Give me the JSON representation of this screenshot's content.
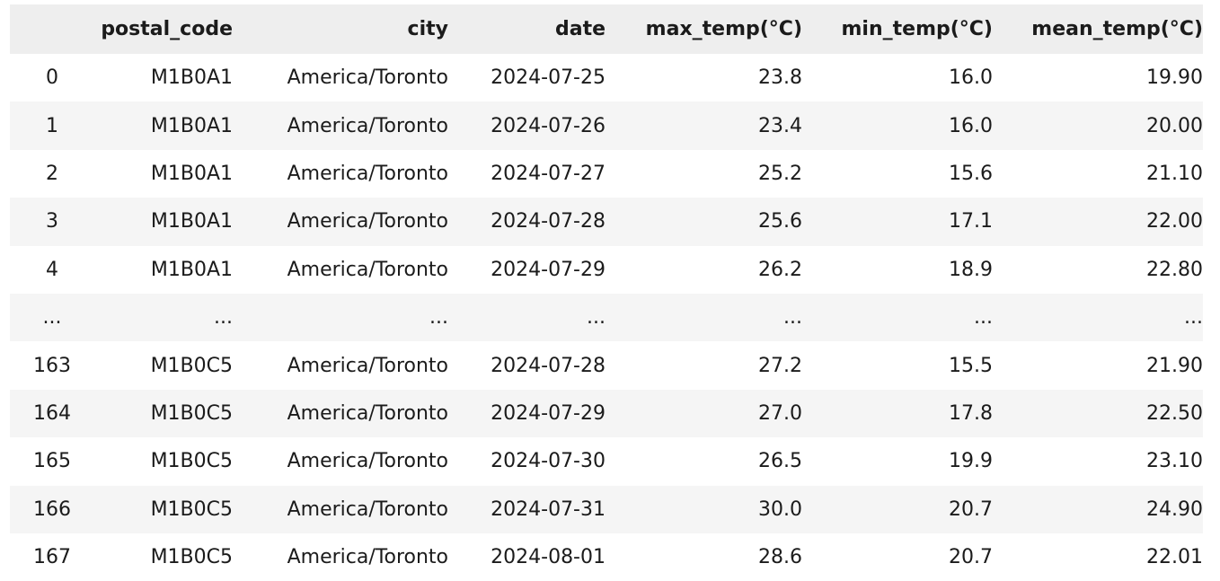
{
  "table": {
    "columns": [
      "",
      "postal_code",
      "city",
      "date",
      "max_temp(°C)",
      "min_temp(°C)",
      "mean_temp(°C)"
    ],
    "rows": [
      {
        "index": "0",
        "postal_code": "M1B0A1",
        "city": "America/Toronto",
        "date": "2024-07-25",
        "max": "23.8",
        "min": "16.0",
        "mean": "19.90"
      },
      {
        "index": "1",
        "postal_code": "M1B0A1",
        "city": "America/Toronto",
        "date": "2024-07-26",
        "max": "23.4",
        "min": "16.0",
        "mean": "20.00"
      },
      {
        "index": "2",
        "postal_code": "M1B0A1",
        "city": "America/Toronto",
        "date": "2024-07-27",
        "max": "25.2",
        "min": "15.6",
        "mean": "21.10"
      },
      {
        "index": "3",
        "postal_code": "M1B0A1",
        "city": "America/Toronto",
        "date": "2024-07-28",
        "max": "25.6",
        "min": "17.1",
        "mean": "22.00"
      },
      {
        "index": "4",
        "postal_code": "M1B0A1",
        "city": "America/Toronto",
        "date": "2024-07-29",
        "max": "26.2",
        "min": "18.9",
        "mean": "22.80"
      },
      {
        "index": "...",
        "postal_code": "...",
        "city": "...",
        "date": "...",
        "max": "...",
        "min": "...",
        "mean": "..."
      },
      {
        "index": "163",
        "postal_code": "M1B0C5",
        "city": "America/Toronto",
        "date": "2024-07-28",
        "max": "27.2",
        "min": "15.5",
        "mean": "21.90"
      },
      {
        "index": "164",
        "postal_code": "M1B0C5",
        "city": "America/Toronto",
        "date": "2024-07-29",
        "max": "27.0",
        "min": "17.8",
        "mean": "22.50"
      },
      {
        "index": "165",
        "postal_code": "M1B0C5",
        "city": "America/Toronto",
        "date": "2024-07-30",
        "max": "26.5",
        "min": "19.9",
        "mean": "23.10"
      },
      {
        "index": "166",
        "postal_code": "M1B0C5",
        "city": "America/Toronto",
        "date": "2024-07-31",
        "max": "30.0",
        "min": "20.7",
        "mean": "24.90"
      },
      {
        "index": "167",
        "postal_code": "M1B0C5",
        "city": "America/Toronto",
        "date": "2024-08-01",
        "max": "28.6",
        "min": "20.7",
        "mean": "22.01"
      }
    ]
  }
}
